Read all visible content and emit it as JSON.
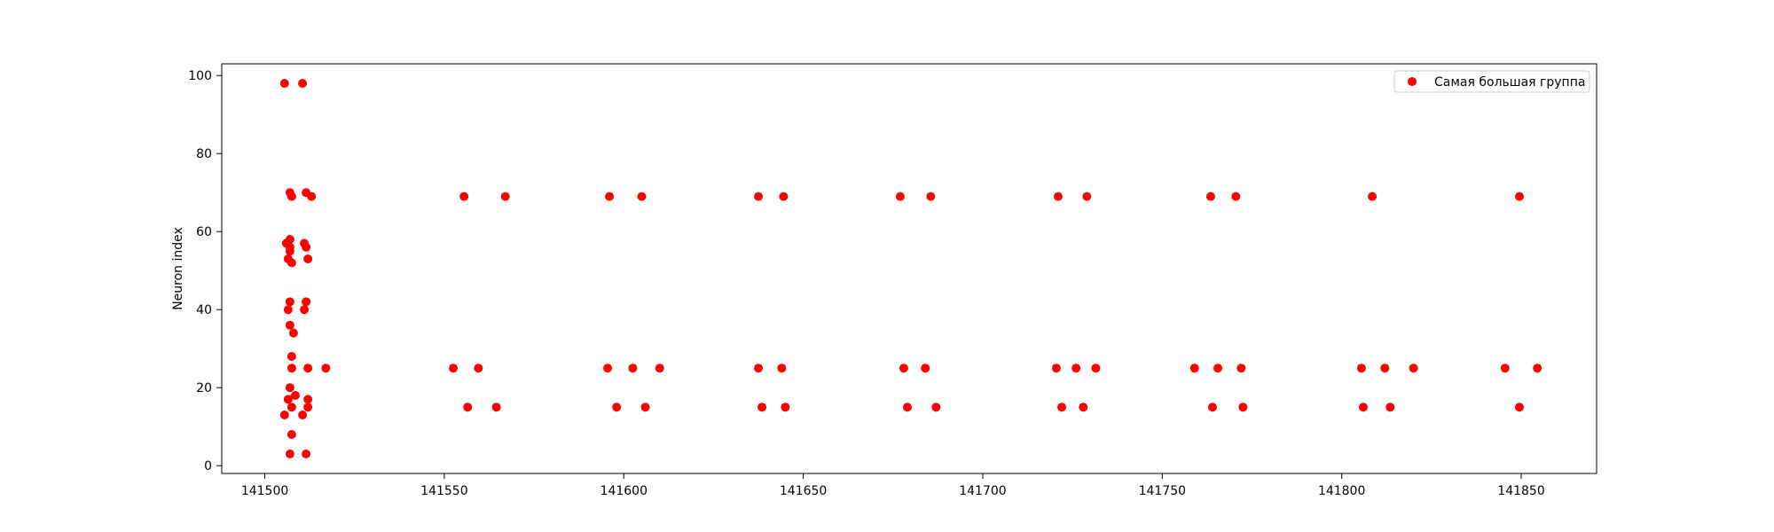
{
  "chart_data": {
    "type": "scatter",
    "title": "",
    "xlabel": "",
    "ylabel": "Neuron index",
    "xlim": [
      141488,
      141871
    ],
    "ylim": [
      -2,
      103
    ],
    "xticks": [
      141500,
      141550,
      141600,
      141650,
      141700,
      141750,
      141800,
      141850
    ],
    "yticks": [
      0,
      20,
      40,
      60,
      80,
      100
    ],
    "grid": false,
    "legend_position": "top-right",
    "series": [
      {
        "name": "Самая большая группа",
        "color": "#ff0000",
        "points": [
          [
            141505.5,
            98
          ],
          [
            141510.5,
            98
          ],
          [
            141507,
            70
          ],
          [
            141507.5,
            69
          ],
          [
            141511.5,
            70
          ],
          [
            141513,
            69
          ],
          [
            141506,
            57
          ],
          [
            141507,
            58
          ],
          [
            141507,
            56
          ],
          [
            141507,
            55
          ],
          [
            141511,
            57
          ],
          [
            141511.5,
            56
          ],
          [
            141506.5,
            53
          ],
          [
            141507.5,
            52
          ],
          [
            141512,
            53
          ],
          [
            141507,
            42
          ],
          [
            141506.5,
            40
          ],
          [
            141511.5,
            42
          ],
          [
            141511,
            40
          ],
          [
            141507,
            36
          ],
          [
            141508,
            34
          ],
          [
            141507.5,
            28
          ],
          [
            141507.5,
            25
          ],
          [
            141512,
            25
          ],
          [
            141517,
            25
          ],
          [
            141507,
            20
          ],
          [
            141508.5,
            18
          ],
          [
            141506.5,
            17
          ],
          [
            141512,
            17
          ],
          [
            141507.5,
            15
          ],
          [
            141512,
            15
          ],
          [
            141505.5,
            13
          ],
          [
            141510.5,
            13
          ],
          [
            141507.5,
            8
          ],
          [
            141507,
            3
          ],
          [
            141511.5,
            3
          ],
          [
            141555.5,
            69
          ],
          [
            141567,
            69
          ],
          [
            141552.5,
            25
          ],
          [
            141559.5,
            25
          ],
          [
            141556.5,
            15
          ],
          [
            141564.5,
            15
          ],
          [
            141596,
            69
          ],
          [
            141605,
            69
          ],
          [
            141595.5,
            25
          ],
          [
            141602.5,
            25
          ],
          [
            141610,
            25
          ],
          [
            141598,
            15
          ],
          [
            141606,
            15
          ],
          [
            141637.5,
            69
          ],
          [
            141644.5,
            69
          ],
          [
            141637.5,
            25
          ],
          [
            141644,
            25
          ],
          [
            141638.5,
            15
          ],
          [
            141645,
            15
          ],
          [
            141677,
            69
          ],
          [
            141685.5,
            69
          ],
          [
            141678,
            25
          ],
          [
            141684,
            25
          ],
          [
            141679,
            15
          ],
          [
            141687,
            15
          ],
          [
            141721,
            69
          ],
          [
            141729,
            69
          ],
          [
            141720.5,
            25
          ],
          [
            141726,
            25
          ],
          [
            141731.5,
            25
          ],
          [
            141722,
            15
          ],
          [
            141728,
            15
          ],
          [
            141763.5,
            69
          ],
          [
            141770.5,
            69
          ],
          [
            141759,
            25
          ],
          [
            141765.5,
            25
          ],
          [
            141772,
            25
          ],
          [
            141764,
            15
          ],
          [
            141772.5,
            15
          ],
          [
            141808.5,
            69
          ],
          [
            141805.5,
            25
          ],
          [
            141812,
            25
          ],
          [
            141820,
            25
          ],
          [
            141806,
            15
          ],
          [
            141813.5,
            15
          ],
          [
            141849.5,
            69
          ],
          [
            141845.5,
            25
          ],
          [
            141854.5,
            25
          ],
          [
            141849.5,
            15
          ]
        ]
      }
    ]
  }
}
